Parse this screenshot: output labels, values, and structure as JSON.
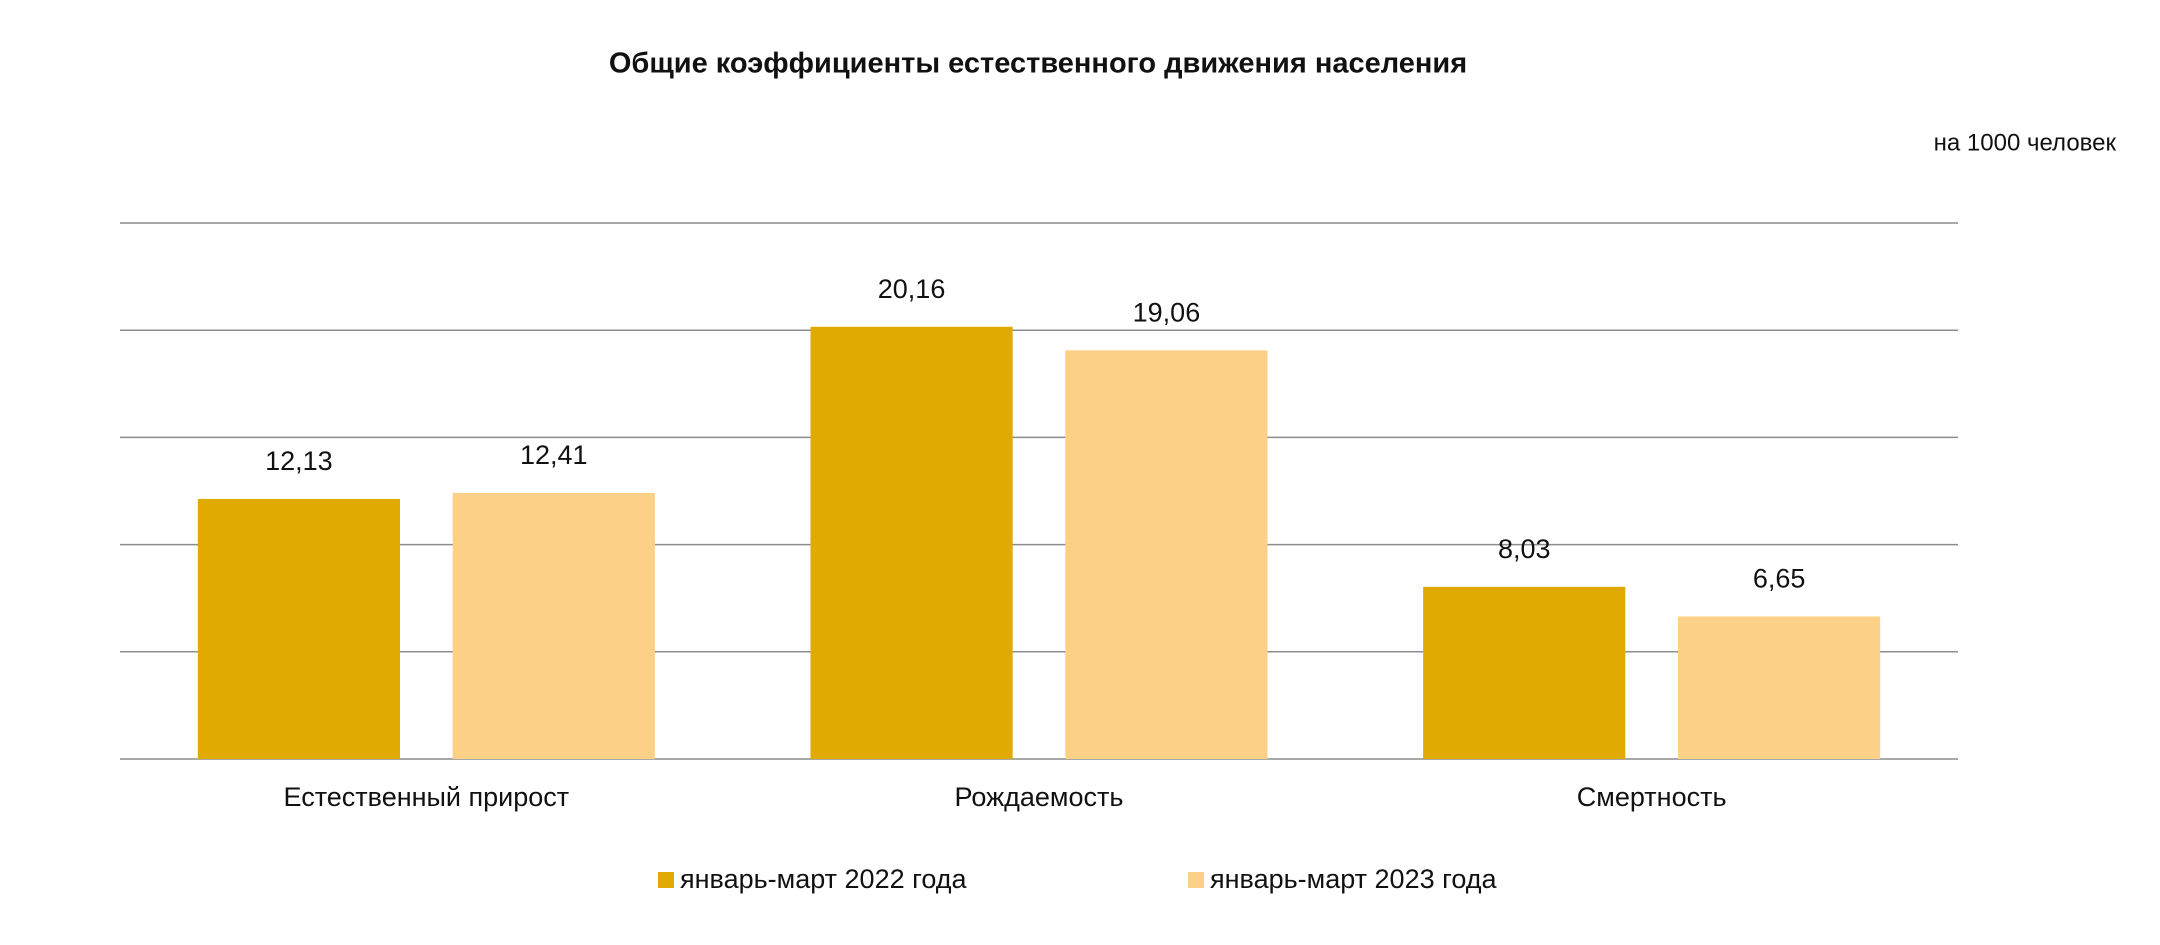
{
  "chart_data": {
    "type": "bar",
    "title": "Общие коэффициенты естественного движения населения",
    "subtitle": "на 1000 человек",
    "categories": [
      "Естественный прирост",
      "Рождаемость",
      "Смертность"
    ],
    "series": [
      {
        "name": "январь-март 2022 года",
        "color": "#e0aa00",
        "values": [
          12.13,
          20.16,
          8.03
        ],
        "value_labels": [
          "12,13",
          "20,16",
          "8,03"
        ]
      },
      {
        "name": "январь-март 2023 года",
        "color": "#fdd088",
        "values": [
          12.41,
          19.06,
          6.65
        ],
        "value_labels": [
          "12,41",
          "19,06",
          "6,65"
        ]
      }
    ],
    "ylim": [
      0,
      25
    ],
    "yticks": [
      0,
      5,
      10,
      15,
      20,
      25
    ],
    "grid": true,
    "legend": "bottom"
  }
}
